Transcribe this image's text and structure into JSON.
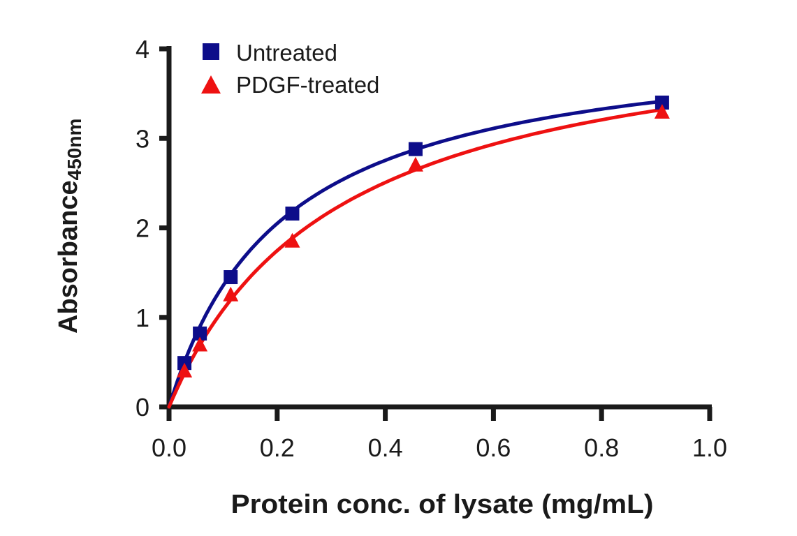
{
  "chart_data": {
    "type": "scatter",
    "title": "",
    "xlabel": "Protein conc. of lysate (mg/mL)",
    "ylabel_main": "Absorbance",
    "ylabel_subscript": "450nm",
    "xlim": [
      0,
      1.0
    ],
    "ylim": [
      0,
      4
    ],
    "x_ticks": [
      0.0,
      0.2,
      0.4,
      0.6,
      0.8,
      1.0
    ],
    "x_tick_labels": [
      "0.0",
      "0.2",
      "0.4",
      "0.6",
      "0.8",
      "1.0"
    ],
    "y_ticks": [
      0,
      1,
      2,
      3,
      4
    ],
    "y_tick_labels": [
      "0",
      "1",
      "2",
      "3",
      "4"
    ],
    "grid": false,
    "legend_position": "top-left",
    "series": [
      {
        "name": "Untreated",
        "marker": "square",
        "color": "#0d0d8a",
        "x": [
          0.0285,
          0.057,
          0.114,
          0.228,
          0.456,
          0.912
        ],
        "y": [
          0.49,
          0.82,
          1.45,
          2.16,
          2.88,
          3.4
        ],
        "fit": {
          "model": "hyperbolic",
          "vmax": 4.2,
          "k": 0.21
        }
      },
      {
        "name": "PDGF-treated",
        "marker": "triangle",
        "color": "#ee1111",
        "x": [
          0.0285,
          0.057,
          0.114,
          0.228,
          0.456,
          0.912
        ],
        "y": [
          0.4,
          0.69,
          1.25,
          1.85,
          2.7,
          3.29
        ],
        "fit": {
          "model": "hyperbolic",
          "vmax": 4.45,
          "k": 0.31
        }
      }
    ]
  }
}
